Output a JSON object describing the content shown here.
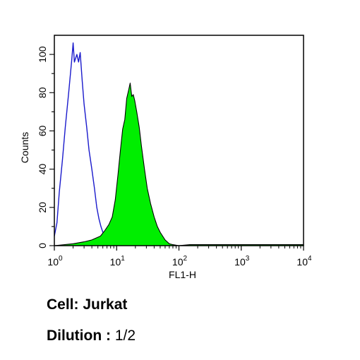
{
  "chart_data": {
    "type": "area",
    "xlabel": "FL1-H",
    "ylabel": "Counts",
    "xscale": "log",
    "xlim": [
      1,
      10000
    ],
    "ylim": [
      0,
      110
    ],
    "x_ticks": [
      {
        "base": "10",
        "exp": "0"
      },
      {
        "base": "10",
        "exp": "1"
      },
      {
        "base": "10",
        "exp": "2"
      },
      {
        "base": "10",
        "exp": "3"
      },
      {
        "base": "10",
        "exp": "4"
      }
    ],
    "x_tick_values": [
      1,
      10,
      100,
      1000,
      10000
    ],
    "y_ticks": [
      "0",
      "20",
      "40",
      "60",
      "80",
      "100"
    ],
    "y_tick_values": [
      0,
      20,
      40,
      60,
      80,
      100
    ],
    "series": [
      {
        "style": "outline",
        "color": "#1a1acc",
        "x": [
          1.0,
          1.1,
          1.2,
          1.35,
          1.5,
          1.7,
          1.9,
          2.0,
          2.1,
          2.3,
          2.45,
          2.6,
          2.8,
          3.0,
          3.3,
          3.6,
          4.0,
          4.4,
          4.8,
          5.2,
          5.6,
          6.0,
          6.4,
          6.8,
          7.2
        ],
        "y": [
          5,
          12,
          28,
          45,
          62,
          80,
          97,
          106,
          96,
          100,
          96,
          101,
          86,
          74,
          62,
          50,
          40,
          30,
          20,
          14,
          10,
          7,
          5,
          2,
          0
        ]
      },
      {
        "style": "filled",
        "color": "#00ee00",
        "x": [
          1.0,
          2.0,
          3.0,
          4.0,
          5.5,
          6.5,
          7.5,
          8.5,
          9.5,
          10.5,
          11.5,
          12.5,
          13.5,
          14.5,
          15.5,
          16.5,
          17.5,
          18.5,
          19.5,
          21.0,
          23.0,
          25.0,
          28.0,
          31.0,
          35.0,
          40.0,
          45.0,
          50.0,
          60.0,
          70.0,
          80.0,
          100.0,
          150.0,
          300.0,
          1000.0,
          3000.0,
          10000.0
        ],
        "y": [
          0,
          1,
          2,
          3,
          5,
          8,
          11,
          15,
          24,
          37,
          50,
          61,
          66,
          77,
          81,
          85,
          78,
          79,
          76,
          70,
          62,
          52,
          40,
          30,
          22,
          15,
          10,
          7,
          3,
          1,
          0.5,
          0,
          0.5,
          0.5,
          0.5,
          0.5,
          0.5
        ]
      }
    ]
  },
  "caption": {
    "cell_key": "Cell: Jurkat",
    "dilution_key": "Dilution :",
    "dilution_value": "1/2"
  }
}
